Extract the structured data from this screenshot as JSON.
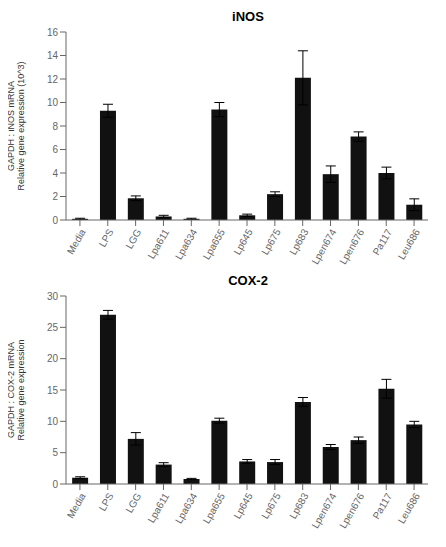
{
  "chart_data": [
    {
      "type": "bar",
      "title": "iNOS",
      "ylabel": "GAPDH : iNOS mRNA\nRelative gene expression (10^3)",
      "categories": [
        "Media",
        "LPS",
        "LGG",
        "Lpa611",
        "Lpa634",
        "Lpa655",
        "Lp645",
        "Lp675",
        "Lp683",
        "Lpen674",
        "Lpen676",
        "Pa117",
        "Leu686"
      ],
      "values": [
        0.1,
        9.3,
        1.85,
        0.3,
        0.1,
        9.4,
        0.4,
        2.2,
        12.1,
        3.9,
        7.1,
        4.0,
        1.3
      ],
      "errors": [
        0.05,
        0.55,
        0.2,
        0.1,
        0.05,
        0.6,
        0.1,
        0.2,
        2.3,
        0.7,
        0.4,
        0.5,
        0.5
      ],
      "color": "#111111",
      "ylim": [
        0,
        16
      ],
      "yticks": [
        0,
        2,
        4,
        6,
        8,
        10,
        12,
        14,
        16
      ]
    },
    {
      "type": "bar",
      "title": "COX-2",
      "ylabel": "GAPDH : COX-2 mRNA\nRelative gene expression",
      "categories": [
        "Media",
        "LPS",
        "LGG",
        "Lpa611",
        "Lpa634",
        "Lpa655",
        "Lp645",
        "Lp675",
        "Lp683",
        "Lpen674",
        "Lpen676",
        "Pa117",
        "Leu686"
      ],
      "values": [
        1.0,
        27.0,
        7.2,
        3.1,
        0.8,
        10.1,
        3.6,
        3.5,
        13.1,
        5.9,
        7.0,
        15.2,
        9.5
      ],
      "errors": [
        0.15,
        0.7,
        1.0,
        0.3,
        0.1,
        0.4,
        0.3,
        0.4,
        0.7,
        0.4,
        0.5,
        1.5,
        0.5
      ],
      "color": "#111111",
      "ylim": [
        0,
        30
      ],
      "yticks": [
        0,
        5,
        10,
        15,
        20,
        25,
        30
      ]
    }
  ]
}
